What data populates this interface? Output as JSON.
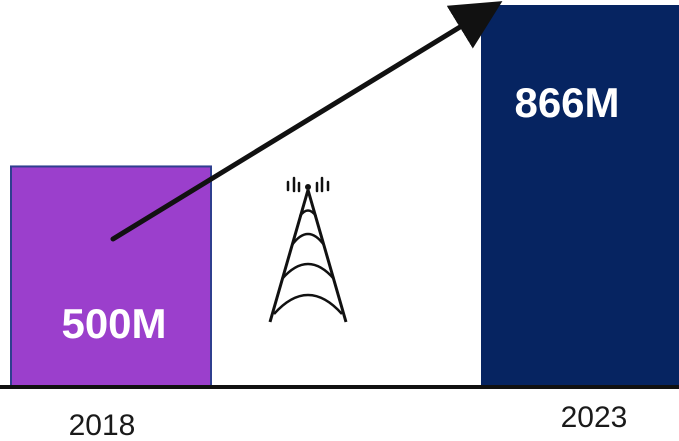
{
  "chart_data": {
    "type": "bar",
    "title": "",
    "xlabel": "",
    "ylabel": "",
    "categories": [
      "2018",
      "2023"
    ],
    "values": [
      500,
      866
    ],
    "data_labels": [
      "500M",
      "866M"
    ],
    "ylim": [
      0,
      866
    ],
    "grid": false,
    "legend": "none",
    "colors": {
      "bar_2018": "#9b3fcc",
      "bar_2018_border": "#2f3f8f",
      "bar_2023": "#062461",
      "axis": "#111111",
      "arrow": "#111111",
      "icon": "#111111"
    },
    "annotations": {
      "growth_arrow": "from 2018 bar to 2023 bar",
      "icon": "cell-tower-icon"
    }
  }
}
